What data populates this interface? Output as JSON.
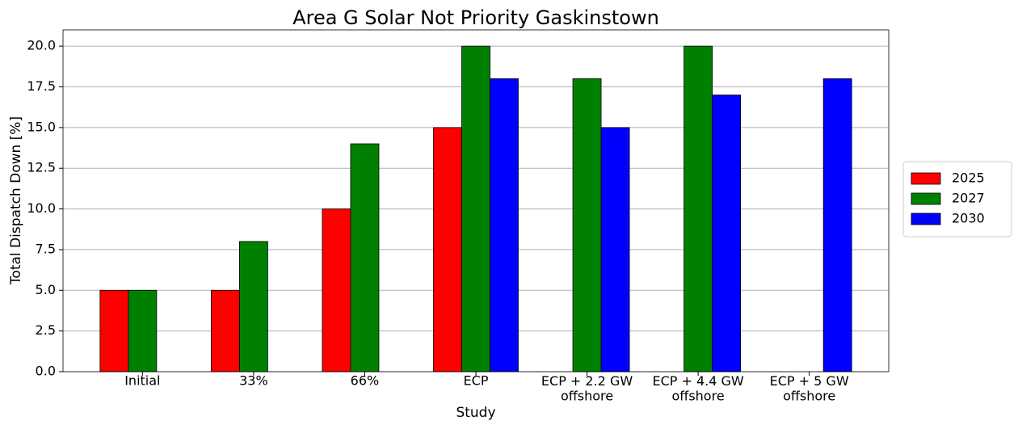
{
  "chart_data": {
    "type": "bar",
    "title": "Area G Solar Not Priority Gaskinstown",
    "xlabel": "Study",
    "ylabel": "Total Dispatch Down [%]",
    "categories": [
      "Initial",
      "33%",
      "66%",
      "ECP",
      "ECP + 2.2 GW\noffshore",
      "ECP + 4.4 GW\noffshore",
      "ECP + 5 GW\noffshore"
    ],
    "series": [
      {
        "name": "2025",
        "color": "#ff0000",
        "values": [
          5,
          5,
          10,
          15,
          null,
          null,
          null
        ]
      },
      {
        "name": "2027",
        "color": "#008000",
        "values": [
          5,
          8,
          14,
          20,
          18,
          20,
          null
        ]
      },
      {
        "name": "2030",
        "color": "#0000ff",
        "values": [
          null,
          null,
          null,
          18,
          15,
          17,
          18
        ]
      }
    ],
    "ylim": [
      0,
      21
    ],
    "yticks": [
      {
        "value": 0,
        "label": "0.0"
      },
      2.5,
      {
        "value": 5,
        "label": "5.0"
      },
      7.5,
      {
        "value": 10,
        "label": "10.0"
      },
      12.5,
      {
        "value": 15,
        "label": "15.0"
      },
      17.5,
      {
        "value": 20,
        "label": "20.0"
      }
    ],
    "grid": true,
    "legend": "right"
  }
}
